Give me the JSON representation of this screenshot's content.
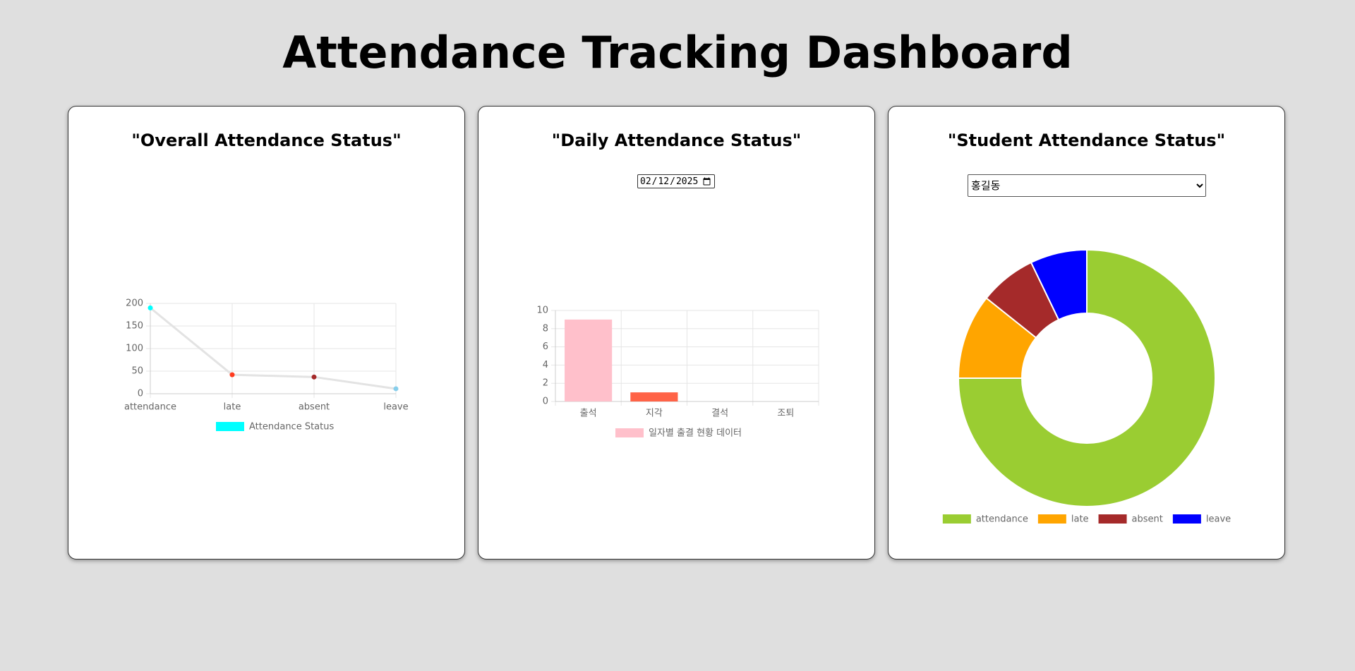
{
  "header": {
    "title": "Attendance Tracking Dashboard"
  },
  "chart_data": [
    {
      "type": "line",
      "title": "\"Overall Attendance Status\"",
      "categories": [
        "attendance",
        "late",
        "absent",
        "leave"
      ],
      "series": [
        {
          "name": "Attendance Status",
          "color": "#e3e3e3",
          "point_colors": [
            "#00ffff",
            "#ff3b1f",
            "#a52a2a",
            "#87ceeb"
          ],
          "values": [
            190,
            42,
            37,
            11
          ]
        }
      ],
      "ylim": [
        0,
        200
      ],
      "yticks": [
        0,
        50,
        100,
        150,
        200
      ],
      "grid": true
    },
    {
      "type": "bar",
      "title": "\"Daily Attendance Status\"",
      "date": "2025-02-12",
      "categories": [
        "출석",
        "지각",
        "결석",
        "조퇴"
      ],
      "series": [
        {
          "name": "일자별 출결 현황 데이터",
          "colors": [
            "#ffc0cb",
            "#ff6347",
            "#ffc0cb",
            "#ff6347"
          ],
          "values": [
            9,
            1,
            0,
            0
          ]
        }
      ],
      "ylim": [
        0,
        10
      ],
      "yticks": [
        0,
        2,
        4,
        6,
        8,
        10
      ],
      "grid": true
    },
    {
      "type": "doughnut",
      "title": "\"Student Attendance Status\"",
      "selected": "홍길동",
      "categories": [
        "attendance",
        "late",
        "absent",
        "leave"
      ],
      "values": [
        21,
        3,
        2,
        2
      ],
      "colors": [
        "#9acd32",
        "#ffa500",
        "#a52a2a",
        "#0000ff"
      ]
    }
  ]
}
